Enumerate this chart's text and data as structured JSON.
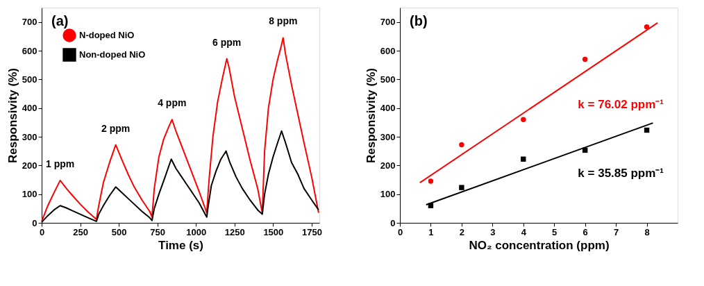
{
  "chart_data": [
    {
      "type": "line",
      "xlabel": "Time (s)",
      "ylabel": "Responsivity (%)",
      "xlim": [
        0,
        1800
      ],
      "ylim": [
        0,
        750
      ],
      "xticks": [
        0,
        250,
        500,
        750,
        1000,
        1250,
        1500,
        1750
      ],
      "yticks": [
        0,
        100,
        200,
        300,
        400,
        500,
        600,
        700
      ],
      "grid": false,
      "legend": "top left",
      "marker": "none",
      "annotations": [
        "(a)",
        "1 ppm",
        "2 ppm",
        "4 ppm",
        "6 ppm",
        "8 ppm"
      ],
      "series": [
        {
          "name": "N-doped NiO",
          "color": "#ff0000",
          "x": [
            0,
            40,
            80,
            120,
            160,
            200,
            250,
            300,
            355,
            370,
            400,
            440,
            480,
            520,
            560,
            600,
            650,
            700,
            715,
            730,
            760,
            790,
            820,
            845,
            870,
            920,
            970,
            1020,
            1070,
            1085,
            1110,
            1140,
            1170,
            1195,
            1200,
            1215,
            1250,
            1300,
            1350,
            1400,
            1430,
            1445,
            1470,
            1500,
            1530,
            1550,
            1565,
            1580,
            1620,
            1660,
            1700,
            1750,
            1795
          ],
          "values": [
            5,
            60,
            105,
            148,
            120,
            95,
            65,
            38,
            12,
            60,
            140,
            210,
            272,
            220,
            170,
            125,
            80,
            40,
            20,
            120,
            230,
            290,
            330,
            360,
            320,
            250,
            180,
            110,
            35,
            150,
            300,
            420,
            500,
            560,
            572,
            540,
            440,
            330,
            220,
            120,
            35,
            250,
            400,
            500,
            570,
            610,
            645,
            590,
            480,
            380,
            280,
            160,
            35
          ]
        },
        {
          "name": "Non-doped NiO",
          "color": "#000000",
          "x": [
            0,
            40,
            80,
            120,
            160,
            200,
            250,
            300,
            355,
            370,
            400,
            440,
            480,
            520,
            560,
            600,
            650,
            700,
            715,
            730,
            760,
            800,
            840,
            870,
            920,
            970,
            1020,
            1070,
            1080,
            1100,
            1130,
            1160,
            1195,
            1220,
            1260,
            1300,
            1350,
            1400,
            1430,
            1445,
            1470,
            1500,
            1530,
            1555,
            1580,
            1620,
            1660,
            1700,
            1750,
            1795
          ],
          "values": [
            2,
            25,
            45,
            60,
            52,
            42,
            30,
            18,
            5,
            30,
            60,
            95,
            125,
            105,
            85,
            65,
            40,
            18,
            8,
            50,
            100,
            160,
            222,
            190,
            150,
            110,
            70,
            20,
            60,
            130,
            180,
            220,
            250,
            210,
            160,
            120,
            80,
            45,
            30,
            100,
            170,
            230,
            280,
            320,
            280,
            210,
            170,
            120,
            80,
            45
          ]
        }
      ]
    },
    {
      "type": "scatter",
      "xlabel": "NO₂ concentration (ppm)",
      "ylabel": "Responsivity (%)",
      "xlim": [
        0,
        9
      ],
      "ylim": [
        0,
        750
      ],
      "xticks": [
        0,
        1,
        2,
        3,
        4,
        5,
        6,
        7,
        8
      ],
      "yticks": [
        0,
        100,
        200,
        300,
        400,
        500,
        600,
        700
      ],
      "grid": false,
      "legend": "top left",
      "annotations": [
        "(b)",
        "k = 76.02 ppm⁻¹",
        "k = 35.85 ppm⁻¹"
      ],
      "series": [
        {
          "name": "N-doped NiO",
          "color": "#ff0000",
          "marker": "circle",
          "x": [
            1,
            2,
            4,
            6,
            8
          ],
          "values": [
            145,
            272,
            360,
            570,
            683
          ]
        },
        {
          "name": "Non-doped NiO",
          "color": "#000000",
          "marker": "square",
          "x": [
            1,
            2,
            4,
            6,
            8
          ],
          "values": [
            60,
            123,
            222,
            253,
            323
          ]
        },
        {
          "type": "line",
          "color": "#ff0000",
          "x": [
            0.65,
            8.35
          ],
          "values": [
            140,
            697
          ]
        },
        {
          "type": "line",
          "color": "#000000",
          "x": [
            0.85,
            8.2
          ],
          "values": [
            63,
            348
          ]
        }
      ]
    }
  ]
}
